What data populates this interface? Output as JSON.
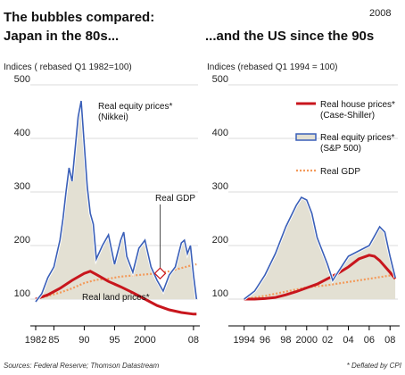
{
  "header": {
    "year": "2008",
    "title_line1": "The bubbles compared:",
    "title_line2": "Japan in the 80s...",
    "title_right": "...and the US since the 90s"
  },
  "footer": {
    "source": "Sources: Federal Reserve; Thomson Datastream",
    "note": "* Deflated by CPI"
  },
  "colors": {
    "equity": "#3a5fb8",
    "equity_fill": "#e3e0d3",
    "land": "#c8161d",
    "gdp": "#f39a5a",
    "grid": "#cfcfcf",
    "axis": "#000000"
  },
  "chart_data": [
    {
      "type": "line",
      "title": "Japan in the 80s...",
      "ylabel": "Indices ( rebased Q1 1982=100)",
      "ylim": [
        50,
        500
      ],
      "yticks": [
        "500",
        "400",
        "300",
        "200",
        "100"
      ],
      "xlim": [
        1982,
        2008.75
      ],
      "xtick_labels": [
        "1982",
        "85",
        "90",
        "95",
        "2000",
        "08"
      ],
      "xtick_values": [
        1982,
        1985,
        1990,
        1995,
        2000,
        2008
      ],
      "annotations": {
        "equity": [
          "Real equity prices*",
          "(Nikkei)"
        ],
        "gdp": "Real GDP",
        "land": "Real land prices*"
      },
      "series": [
        {
          "name": "Real equity prices* (Nikkei)",
          "key": "equity",
          "x": [
            1982,
            1983,
            1984,
            1985,
            1986,
            1986.5,
            1987,
            1987.5,
            1988,
            1988.5,
            1989,
            1989.5,
            1990,
            1990.5,
            1991,
            1991.5,
            1992,
            1993,
            1994,
            1995,
            1996,
            1996.5,
            1997,
            1998,
            1999,
            2000,
            2001,
            2002,
            2003,
            2004,
            2005,
            2006,
            2006.5,
            2007,
            2007.5,
            2008,
            2008.5
          ],
          "y": [
            95,
            110,
            140,
            160,
            210,
            250,
            300,
            345,
            320,
            380,
            440,
            470,
            390,
            310,
            260,
            240,
            175,
            200,
            220,
            165,
            210,
            225,
            180,
            150,
            195,
            210,
            160,
            135,
            115,
            145,
            160,
            205,
            210,
            185,
            200,
            145,
            100
          ]
        },
        {
          "name": "Real GDP",
          "key": "gdp",
          "x": [
            1982,
            1984,
            1986,
            1988,
            1990,
            1992,
            1994,
            1996,
            1998,
            2000,
            2002,
            2004,
            2006,
            2008,
            2008.5
          ],
          "y": [
            100,
            106,
            112,
            120,
            130,
            136,
            138,
            142,
            144,
            146,
            148,
            152,
            158,
            164,
            165
          ]
        },
        {
          "name": "Real land prices*",
          "key": "land",
          "x": [
            1982,
            1984,
            1986,
            1988,
            1990,
            1991,
            1992,
            1994,
            1996,
            1998,
            2000,
            2002,
            2004,
            2006,
            2008,
            2008.5
          ],
          "y": [
            100,
            108,
            120,
            135,
            148,
            152,
            146,
            133,
            123,
            112,
            100,
            88,
            80,
            75,
            72,
            72
          ]
        }
      ]
    },
    {
      "type": "line",
      "title": "...and the US since the 90s",
      "ylabel": "Indices (rebased Q1 1994 = 100)",
      "ylim": [
        50,
        500
      ],
      "yticks": [
        "500",
        "400",
        "300",
        "200",
        "100"
      ],
      "xlim": [
        1993,
        2008.75
      ],
      "xtick_labels": [
        "1994",
        "96",
        "98",
        "2000",
        "02",
        "04",
        "06",
        "08"
      ],
      "xtick_values": [
        1994,
        1996,
        1998,
        2000,
        2002,
        2004,
        2006,
        2008
      ],
      "legend": [
        "Real house prices*",
        "(Case-Shiller)",
        "Real equity prices*",
        "(S&P 500)",
        "Real GDP"
      ],
      "legend_position": "top-right",
      "series": [
        {
          "name": "Real house prices* (Case-Shiller)",
          "key": "land",
          "x": [
            1994,
            1995,
            1996,
            1997,
            1998,
            1999,
            2000,
            2001,
            2002,
            2003,
            2004,
            2005,
            2006,
            2006.5,
            2007,
            2008,
            2008.5
          ],
          "y": [
            100,
            100,
            101,
            103,
            108,
            114,
            121,
            128,
            138,
            148,
            160,
            175,
            182,
            180,
            172,
            150,
            138
          ]
        },
        {
          "name": "Real equity prices* (S&P 500)",
          "key": "equity",
          "x": [
            1994,
            1995,
            1996,
            1997,
            1998,
            1999,
            1999.5,
            2000,
            2000.5,
            2001,
            2001.5,
            2002,
            2002.5,
            2003,
            2004,
            2005,
            2006,
            2007,
            2007.5,
            2008,
            2008.5
          ],
          "y": [
            100,
            115,
            145,
            185,
            235,
            275,
            290,
            285,
            260,
            215,
            190,
            165,
            135,
            150,
            180,
            190,
            200,
            235,
            225,
            180,
            140
          ]
        },
        {
          "name": "Real GDP",
          "key": "gdp",
          "x": [
            1994,
            1996,
            1998,
            2000,
            2002,
            2004,
            2006,
            2008,
            2008.5
          ],
          "y": [
            100,
            106,
            114,
            122,
            126,
            132,
            138,
            144,
            145
          ]
        }
      ]
    }
  ]
}
